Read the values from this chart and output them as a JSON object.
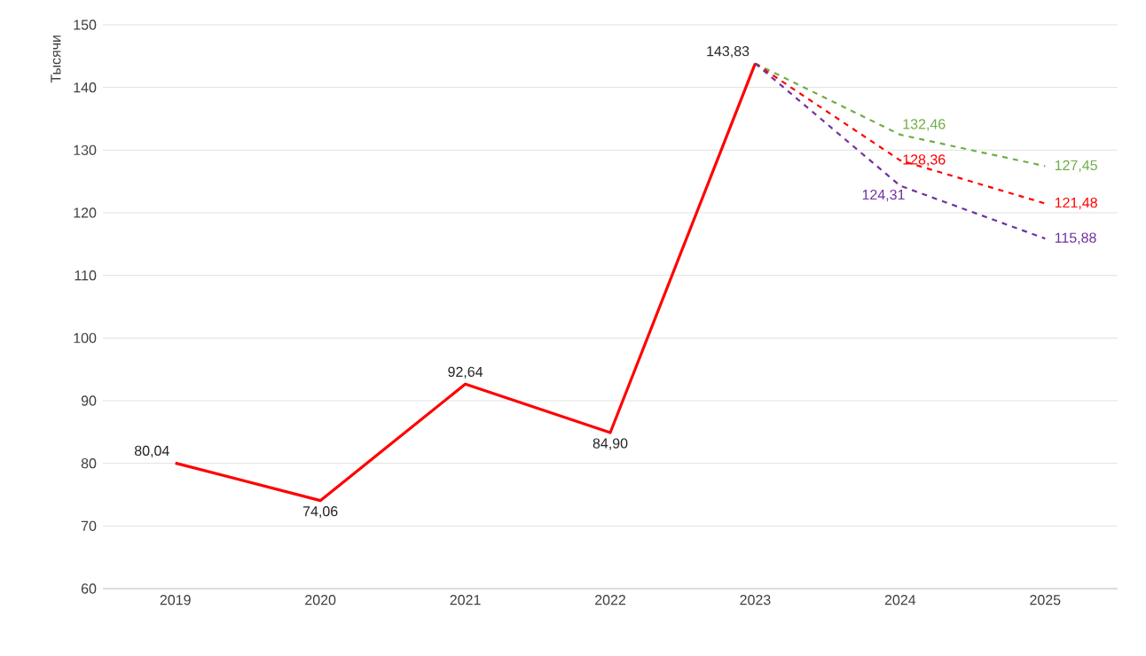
{
  "chart_data": {
    "type": "line",
    "ylabel": "Тысячи",
    "categories": [
      "2019",
      "2020",
      "2021",
      "2022",
      "2023",
      "2024",
      "2025"
    ],
    "ylim": [
      60,
      150
    ],
    "yticks": [
      60,
      70,
      80,
      90,
      100,
      110,
      120,
      130,
      140,
      150
    ],
    "grid": "y",
    "marker": "none",
    "series": [
      {
        "color": "#ff0000",
        "line_style": "solid",
        "values": [
          80.04,
          74.06,
          92.64,
          84.9,
          143.83,
          null,
          null
        ],
        "value_labels": [
          "80,04",
          "74,06",
          "92,64",
          "84,90",
          "143,83",
          null,
          null
        ]
      },
      {
        "color": "#70ad47",
        "line_style": "dashed",
        "values": [
          null,
          null,
          null,
          null,
          143.83,
          132.46,
          127.45
        ],
        "value_labels": [
          null,
          null,
          null,
          null,
          null,
          "132,46",
          "127,45"
        ]
      },
      {
        "color": "#ff0000",
        "line_style": "dashed",
        "values": [
          null,
          null,
          null,
          null,
          143.83,
          128.36,
          121.48
        ],
        "value_labels": [
          null,
          null,
          null,
          null,
          null,
          "128,36",
          "121,48"
        ]
      },
      {
        "color": "#7030a0",
        "line_style": "dashed",
        "values": [
          null,
          null,
          null,
          null,
          143.83,
          124.31,
          115.88
        ],
        "value_labels": [
          null,
          null,
          null,
          null,
          null,
          "124,31",
          "115,88"
        ]
      }
    ]
  }
}
